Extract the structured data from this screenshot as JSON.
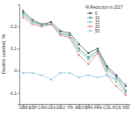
{
  "chart_data": {
    "type": "line",
    "y_label": "Deaths averted, %",
    "legend_title": "% Reduction in 2017",
    "categories": [
      "GBR",
      "ESP",
      "CAN",
      "USA",
      "DEU",
      "ITA",
      "MEX",
      "BRA",
      "FRA",
      "COL",
      "RUS",
      "IND"
    ],
    "ylim": [
      -0.15,
      0.3
    ],
    "yticks": [
      -0.1,
      0,
      0.1,
      0.2
    ],
    "legend": "upper right",
    "marker": "circle",
    "series": [
      {
        "name": "0",
        "color": "#555555",
        "values": [
          0.27,
          0.23,
          0.21,
          0.22,
          0.18,
          0.17,
          0.12,
          0.08,
          0.1,
          0.02,
          -0.02,
          -0.07
        ]
      },
      {
        "name": "10",
        "color": "#3a9a9a",
        "values": [
          0.26,
          0.22,
          0.21,
          0.21,
          0.17,
          0.16,
          0.1,
          0.06,
          0.09,
          0.01,
          -0.03,
          -0.09
        ]
      },
      {
        "name": "15",
        "color": "#8fc8b8",
        "values": [
          0.25,
          0.22,
          0.2,
          0.21,
          0.17,
          0.15,
          0.09,
          0.05,
          0.08,
          0.0,
          -0.05,
          -0.1
        ]
      },
      {
        "name": "20",
        "color": "#e58a8a",
        "values": [
          0.24,
          0.21,
          0.2,
          0.21,
          0.16,
          0.15,
          0.07,
          0.03,
          0.08,
          -0.02,
          -0.07,
          -0.11
        ]
      },
      {
        "name": "50",
        "color": "#9cc8e0",
        "values": [
          -0.01,
          -0.01,
          -0.02,
          -0.04,
          -0.01,
          -0.01,
          -0.03,
          -0.02,
          -0.03,
          -0.02,
          -0.04,
          -0.06
        ]
      }
    ]
  }
}
